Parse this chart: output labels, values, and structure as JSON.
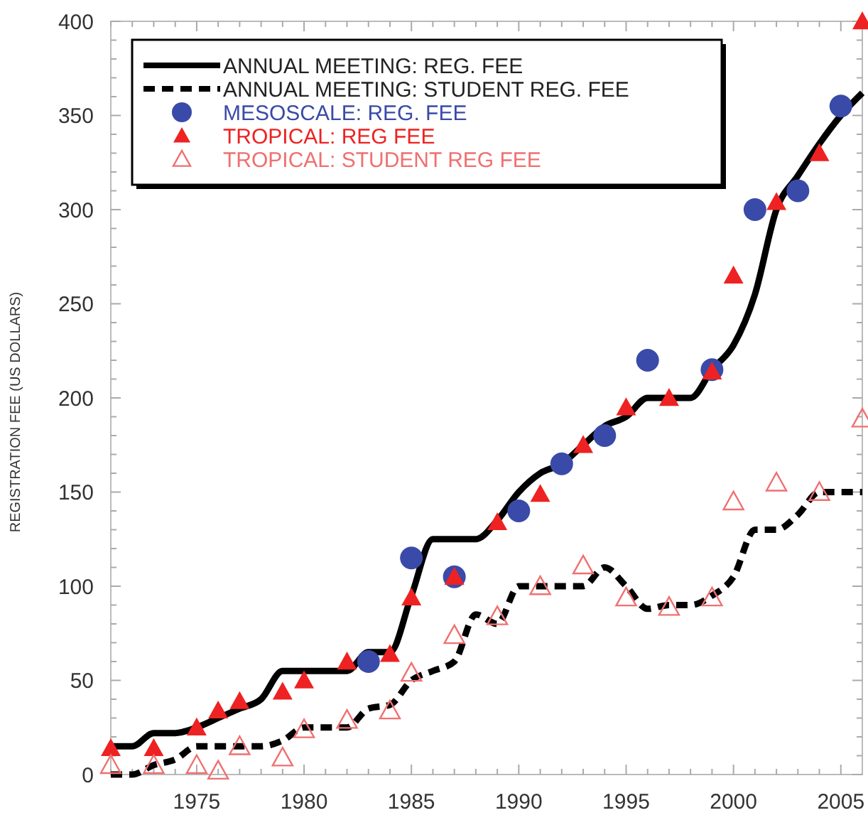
{
  "chart_data": {
    "type": "line",
    "ylabel": "REGISTRATION FEE (US DOLLARS)",
    "xlim": [
      1971,
      2006
    ],
    "ylim": [
      0,
      400
    ],
    "xticks": [
      {
        "value": 1971,
        "label": null
      },
      {
        "value": 1972,
        "label": null
      },
      {
        "value": 1973,
        "label": null
      },
      {
        "value": 1974,
        "label": null
      },
      1975,
      {
        "value": 1976,
        "label": null
      },
      {
        "value": 1977,
        "label": null
      },
      {
        "value": 1978,
        "label": null
      },
      {
        "value": 1979,
        "label": null
      },
      1980,
      {
        "value": 1981,
        "label": null
      },
      {
        "value": 1982,
        "label": null
      },
      {
        "value": 1983,
        "label": null
      },
      {
        "value": 1984,
        "label": null
      },
      1985,
      {
        "value": 1986,
        "label": null
      },
      {
        "value": 1987,
        "label": null
      },
      {
        "value": 1988,
        "label": null
      },
      {
        "value": 1989,
        "label": null
      },
      1990,
      {
        "value": 1991,
        "label": null
      },
      {
        "value": 1992,
        "label": null
      },
      {
        "value": 1993,
        "label": null
      },
      {
        "value": 1994,
        "label": null
      },
      1995,
      {
        "value": 1996,
        "label": null
      },
      {
        "value": 1997,
        "label": null
      },
      {
        "value": 1998,
        "label": null
      },
      {
        "value": 1999,
        "label": null
      },
      2000,
      {
        "value": 2001,
        "label": null
      },
      {
        "value": 2002,
        "label": null
      },
      {
        "value": 2003,
        "label": null
      },
      {
        "value": 2004,
        "label": null
      },
      2005
    ],
    "yticks": [
      0,
      {
        "value": 10,
        "label": null
      },
      {
        "value": 20,
        "label": null
      },
      {
        "value": 30,
        "label": null
      },
      {
        "value": 40,
        "label": null
      },
      50,
      {
        "value": 60,
        "label": null
      },
      {
        "value": 70,
        "label": null
      },
      {
        "value": 80,
        "label": null
      },
      {
        "value": 90,
        "label": null
      },
      100,
      {
        "value": 110,
        "label": null
      },
      {
        "value": 120,
        "label": null
      },
      {
        "value": 130,
        "label": null
      },
      {
        "value": 140,
        "label": null
      },
      150,
      {
        "value": 160,
        "label": null
      },
      {
        "value": 170,
        "label": null
      },
      {
        "value": 180,
        "label": null
      },
      {
        "value": 190,
        "label": null
      },
      200,
      {
        "value": 210,
        "label": null
      },
      {
        "value": 220,
        "label": null
      },
      {
        "value": 230,
        "label": null
      },
      {
        "value": 240,
        "label": null
      },
      250,
      {
        "value": 260,
        "label": null
      },
      {
        "value": 270,
        "label": null
      },
      {
        "value": 280,
        "label": null
      },
      {
        "value": 290,
        "label": null
      },
      300,
      {
        "value": 310,
        "label": null
      },
      {
        "value": 320,
        "label": null
      },
      {
        "value": 330,
        "label": null
      },
      {
        "value": 340,
        "label": null
      },
      350,
      {
        "value": 360,
        "label": null
      },
      {
        "value": 370,
        "label": null
      },
      {
        "value": 380,
        "label": null
      },
      {
        "value": 390,
        "label": null
      },
      400
    ],
    "grid": false,
    "legend": "top left",
    "series": [
      {
        "name": "ANNUAL MEETING: REG. FEE",
        "color": "#000000",
        "line_style": "solid",
        "marker": "none",
        "x": [
          1971,
          1972,
          1973,
          1974,
          1975,
          1976,
          1977,
          1978,
          1979,
          1980,
          1981,
          1982,
          1983,
          1984,
          1985,
          1986,
          1987,
          1988,
          1989,
          1990,
          1991,
          1992,
          1993,
          1994,
          1995,
          1996,
          1997,
          1998,
          1999,
          2000,
          2001,
          2002,
          2003,
          2004,
          2005,
          2006
        ],
        "values": [
          15,
          15,
          22,
          22,
          25,
          30,
          35,
          40,
          55,
          55,
          55,
          55,
          65,
          65,
          95,
          125,
          125,
          125,
          135,
          150,
          160,
          165,
          175,
          185,
          190,
          200,
          200,
          200,
          215,
          228,
          255,
          300,
          318,
          335,
          350,
          362
        ]
      },
      {
        "name": "ANNUAL MEETING: STUDENT REG. FEE",
        "color": "#000000",
        "line_style": "dashed",
        "marker": "none",
        "x": [
          1971,
          1972,
          1973,
          1974,
          1975,
          1976,
          1977,
          1978,
          1979,
          1980,
          1981,
          1982,
          1983,
          1984,
          1985,
          1986,
          1987,
          1988,
          1989,
          1990,
          1991,
          1992,
          1993,
          1994,
          1995,
          1996,
          1997,
          1998,
          1999,
          2000,
          2001,
          2002,
          2003,
          2004,
          2005,
          2006
        ],
        "values": [
          0,
          0,
          5,
          8,
          15,
          15,
          15,
          15,
          18,
          25,
          25,
          25,
          35,
          37,
          50,
          55,
          60,
          85,
          80,
          100,
          100,
          100,
          100,
          110,
          100,
          88,
          90,
          90,
          95,
          105,
          130,
          130,
          138,
          150,
          150,
          150
        ]
      },
      {
        "name": "MESOSCALE: REG. FEE",
        "type": "scatter",
        "color": "#3a4aa8",
        "marker": "circle",
        "x": [
          1983,
          1985,
          1987,
          1990,
          1992,
          1994,
          1996,
          1999,
          2001,
          2003,
          2005
        ],
        "values": [
          60,
          115,
          105,
          140,
          165,
          180,
          220,
          215,
          300,
          310,
          355
        ]
      },
      {
        "name": "TROPICAL: REG FEE",
        "type": "scatter",
        "color": "#ee2222",
        "marker": "triangle",
        "x": [
          1971,
          1973,
          1975,
          1976,
          1977,
          1979,
          1980,
          1982,
          1984,
          1985,
          1987,
          1989,
          1991,
          1993,
          1995,
          1997,
          1999,
          2000,
          2002,
          2004,
          2006
        ],
        "values": [
          14,
          14,
          25,
          34,
          39,
          44,
          50,
          60,
          64,
          94,
          105,
          134,
          149,
          175,
          195,
          200,
          214,
          265,
          304,
          330,
          400
        ]
      },
      {
        "name": "TROPICAL: STUDENT REG FEE",
        "type": "scatter",
        "color": "#f07070",
        "marker": "triangle",
        "x": [
          1971,
          1973,
          1975,
          1976,
          1977,
          1979,
          1980,
          1982,
          1984,
          1985,
          1987,
          1989,
          1991,
          1993,
          1995,
          1997,
          1999,
          2000,
          2002,
          2004,
          2006
        ],
        "values": [
          5,
          5,
          5,
          2,
          15,
          9,
          24,
          29,
          34,
          54,
          74,
          84,
          100,
          111,
          94,
          89,
          94,
          145,
          155,
          150,
          189
        ]
      }
    ]
  }
}
